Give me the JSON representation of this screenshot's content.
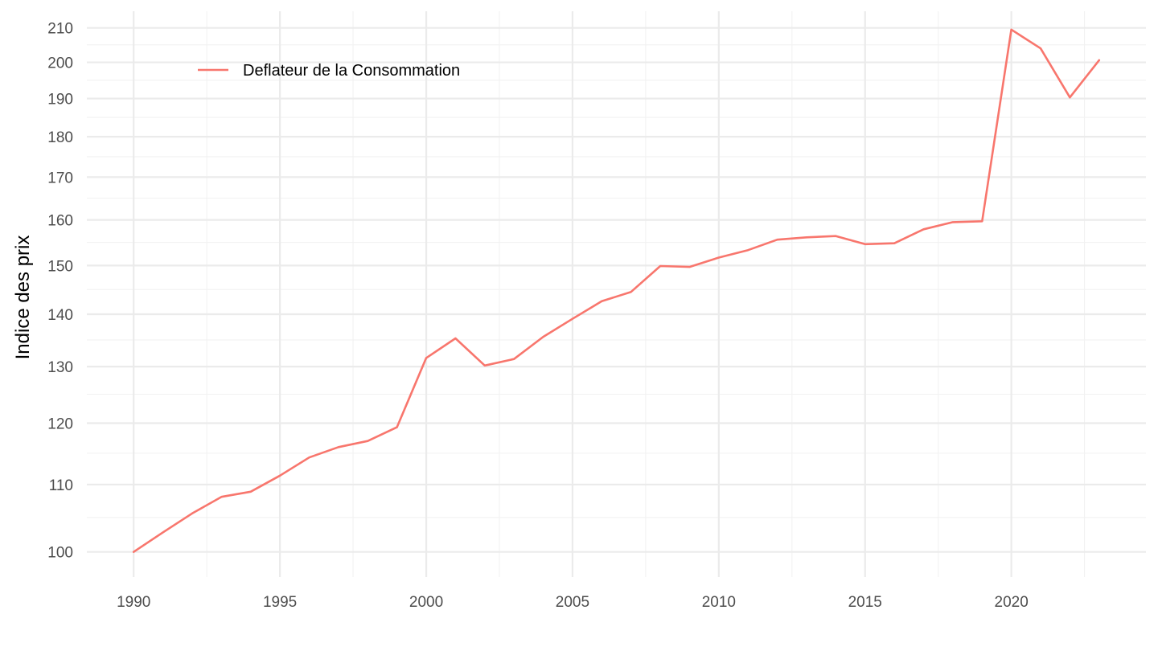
{
  "chart_data": {
    "type": "line",
    "title": "",
    "xlabel": "",
    "ylabel": "Indice des prix",
    "y_scale": "log",
    "xlim": [
      1988.4,
      2024.6
    ],
    "ylim": [
      96.5,
      215
    ],
    "x_ticks": [
      1990,
      1995,
      2000,
      2005,
      2010,
      2015,
      2020
    ],
    "y_ticks": [
      100,
      110,
      120,
      130,
      140,
      150,
      160,
      170,
      180,
      190,
      200,
      210
    ],
    "grid": true,
    "legend_position": "top-left",
    "series": [
      {
        "name": "Deflateur de la Consommation",
        "color": "#F8766D",
        "x": [
          1990,
          1991,
          1992,
          1993,
          1994,
          1995,
          1996,
          1997,
          1998,
          1999,
          2000,
          2001,
          2002,
          2003,
          2004,
          2005,
          2006,
          2007,
          2008,
          2009,
          2010,
          2011,
          2012,
          2013,
          2014,
          2015,
          2016,
          2017,
          2018,
          2019,
          2020,
          2021,
          2022,
          2023
        ],
        "y": [
          100.0,
          102.8,
          105.6,
          108.1,
          108.9,
          111.4,
          114.3,
          116.0,
          117.0,
          119.3,
          131.6,
          135.3,
          130.2,
          131.4,
          135.6,
          139.1,
          142.6,
          144.5,
          149.9,
          149.7,
          151.7,
          153.3,
          155.6,
          156.1,
          156.4,
          154.6,
          154.8,
          157.9,
          159.5,
          159.7,
          209.5,
          204.0,
          190.3,
          200.6
        ]
      }
    ]
  }
}
